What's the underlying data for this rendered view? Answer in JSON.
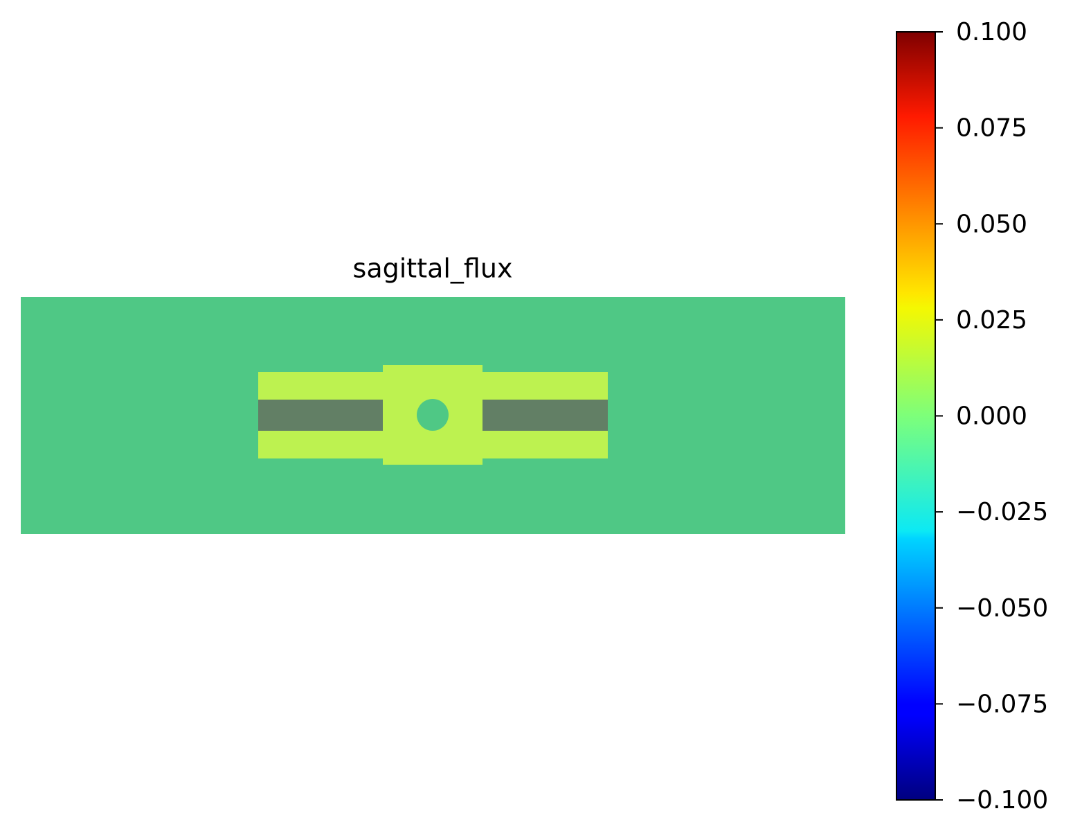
{
  "chart_data": {
    "type": "heatmap",
    "title": "sagittal_flux",
    "clim": [
      -0.1,
      0.1
    ],
    "colorbar_ticks": [
      {
        "value": -0.1,
        "label": "−0.100"
      },
      {
        "value": -0.075,
        "label": "−0.075"
      },
      {
        "value": -0.05,
        "label": "−0.050"
      },
      {
        "value": -0.025,
        "label": "−0.025"
      },
      {
        "value": 0,
        "label": "0.000"
      },
      {
        "value": 0.025,
        "label": "0.025"
      },
      {
        "value": 0.05,
        "label": "0.050"
      },
      {
        "value": 0.075,
        "label": "0.075"
      },
      {
        "value": 0.1,
        "label": "0.100"
      }
    ]
  }
}
